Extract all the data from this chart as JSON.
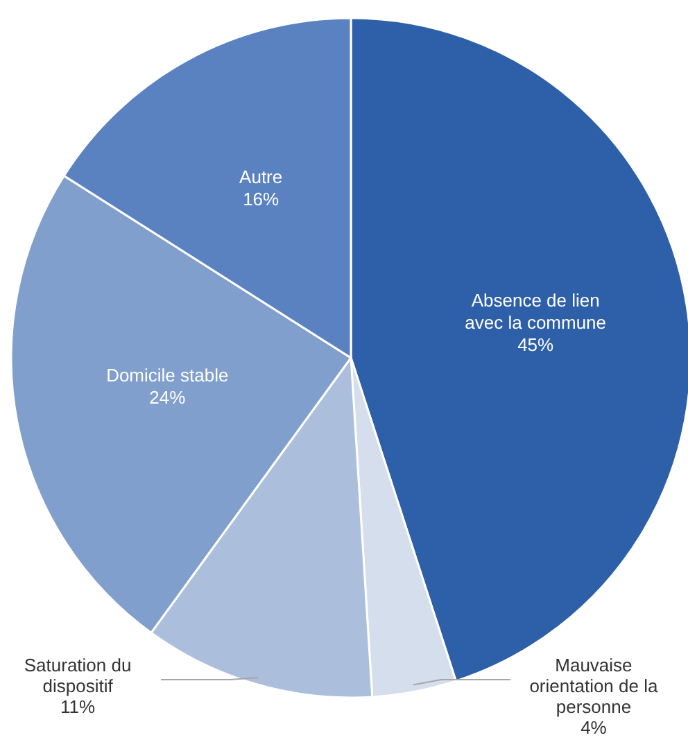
{
  "chart_data": {
    "type": "pie",
    "categories": [
      "Absence de lien avec la commune",
      "Mauvaise orientation de la personne",
      "Saturation du dispositif",
      "Domicile stable",
      "Autre"
    ],
    "values": [
      45,
      4,
      11,
      24,
      16
    ],
    "colors": [
      "#2e5fa9",
      "#d5deec",
      "#abbfdc",
      "#809fcd",
      "#5b82c0"
    ],
    "value_labels": [
      "45%",
      "4%",
      "11%",
      "24%",
      "16%"
    ]
  }
}
